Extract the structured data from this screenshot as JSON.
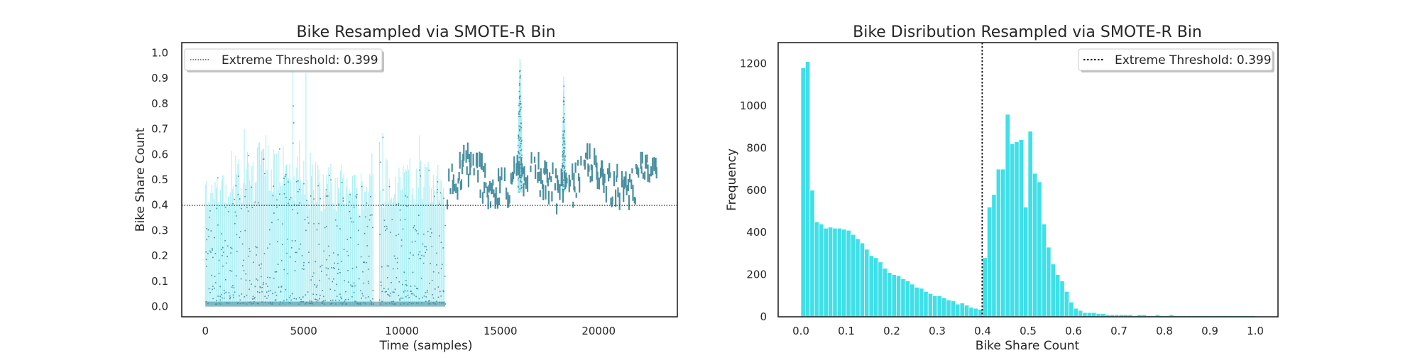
{
  "chart_data": [
    {
      "type": "scatter",
      "title": "Bike Resampled via SMOTE-R Bin",
      "xlabel": "Time (samples)",
      "ylabel": "Bike Share Count",
      "xlim": [
        -1200,
        24000
      ],
      "ylim": [
        -0.04,
        1.04
      ],
      "xticks": [
        0,
        5000,
        10000,
        15000,
        20000
      ],
      "xtick_labels": [
        "0",
        "5000",
        "10000",
        "15000",
        "20000"
      ],
      "yticks": [
        0.0,
        0.1,
        0.2,
        0.3,
        0.4,
        0.5,
        0.6,
        0.7,
        0.8,
        0.9,
        1.0
      ],
      "ytick_labels": [
        "0.0",
        "0.1",
        "0.2",
        "0.3",
        "0.4",
        "0.5",
        "0.6",
        "0.7",
        "0.8",
        "0.9",
        "1.0"
      ],
      "grid": false,
      "legend_position": "top-left",
      "threshold": {
        "value": 0.399,
        "label": "Extreme Threshold: 0.399"
      },
      "series": [
        {
          "region": [
            0,
            12200
          ],
          "description_color": "#9AE7EE",
          "point_color": "#4A8FA0"
        },
        {
          "region": [
            12200,
            23000
          ],
          "point_color": "#4A8FA0"
        }
      ],
      "colors": {
        "stem": "#A6EEF4",
        "point": "#4A8FA0",
        "threshold": "#333333"
      }
    },
    {
      "type": "bar",
      "title": "Bike Disribution Resampled via SMOTE-R Bin",
      "xlabel": "Bike Share Count",
      "ylabel": "Frequency",
      "xlim": [
        -0.05,
        1.05
      ],
      "ylim": [
        0,
        1300
      ],
      "xticks": [
        0.0,
        0.1,
        0.2,
        0.3,
        0.4,
        0.5,
        0.6,
        0.7,
        0.8,
        0.9,
        1.0
      ],
      "xtick_labels": [
        "0.0",
        "0.1",
        "0.2",
        "0.3",
        "0.4",
        "0.5",
        "0.6",
        "0.7",
        "0.8",
        "0.9",
        "1.0"
      ],
      "yticks": [
        0,
        200,
        400,
        600,
        800,
        1000,
        1200
      ],
      "ytick_labels": [
        "0",
        "200",
        "400",
        "600",
        "800",
        "1000",
        "1200"
      ],
      "grid": false,
      "legend_position": "top-right",
      "threshold": {
        "value": 0.399,
        "label": "Extreme Threshold: 0.399"
      },
      "bin_width": 0.01,
      "bin_start": 0.0,
      "values": [
        1180,
        1210,
        600,
        450,
        440,
        420,
        425,
        420,
        420,
        415,
        410,
        390,
        370,
        350,
        320,
        290,
        280,
        260,
        230,
        210,
        200,
        195,
        180,
        170,
        155,
        140,
        135,
        120,
        110,
        100,
        100,
        90,
        80,
        75,
        60,
        65,
        55,
        45,
        40,
        35,
        280,
        520,
        580,
        700,
        700,
        960,
        820,
        830,
        840,
        520,
        880,
        680,
        640,
        440,
        330,
        250,
        200,
        170,
        120,
        70,
        40,
        30,
        20,
        20,
        20,
        15,
        15,
        10,
        10,
        10,
        10,
        10,
        10,
        5,
        10,
        10,
        5,
        5,
        10,
        5,
        5,
        10,
        5,
        5,
        5,
        5,
        5,
        5,
        5,
        5,
        5,
        5,
        5,
        5,
        5,
        5,
        5,
        5,
        5,
        5
      ],
      "colors": {
        "bar": "#3FE0E8",
        "threshold": "#111111"
      }
    }
  ]
}
